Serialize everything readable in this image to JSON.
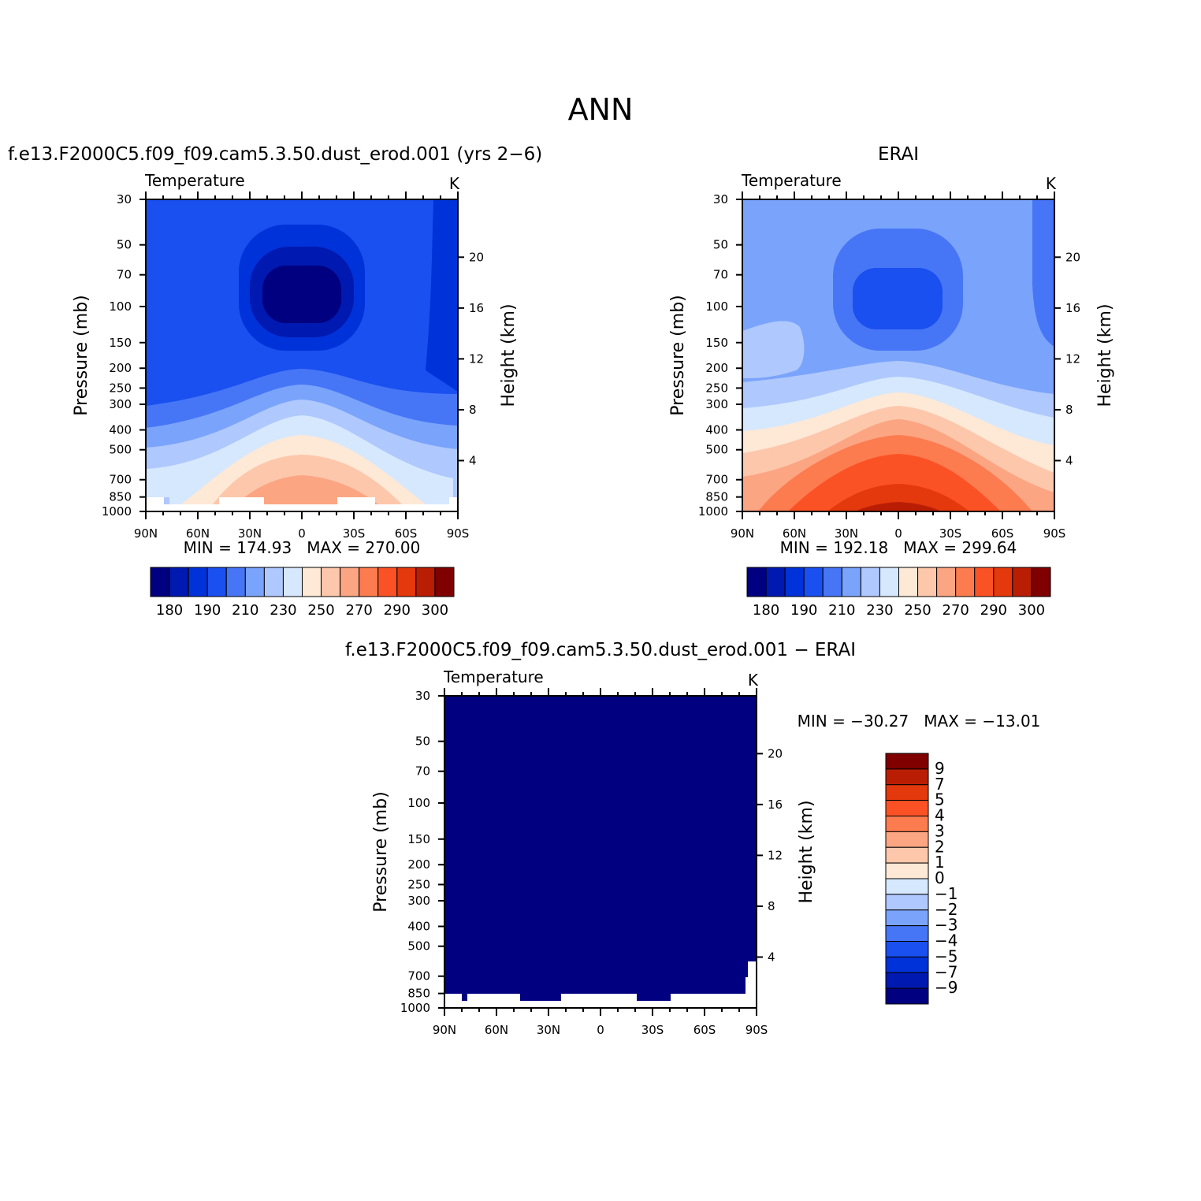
{
  "figure": {
    "title": "ANN",
    "colors": [
      "#000080",
      "#0019b0",
      "#0032d9",
      "#1a4ff0",
      "#4676f6",
      "#7aa3fb",
      "#afc8fd",
      "#d6e8fe",
      "#fee8d6",
      "#fdc7ab",
      "#fca583",
      "#fc7c4f",
      "#fb5225",
      "#e4380d",
      "#b91e05",
      "#800000"
    ]
  },
  "panels": [
    {
      "id": "model",
      "title": "f.e13.F2000C5.f09_f09.cam5.3.50.dust_erod.001 (yrs 2−6)",
      "left_label": "Temperature",
      "right_label": "K",
      "ylabel": "Pressure (mb)",
      "y2label": "Height (km)",
      "minmax": "MIN = 174.93   MAX = 270.00",
      "colorbar_labels": [
        "180",
        "190",
        "210",
        "230",
        "250",
        "270",
        "290",
        "300"
      ]
    },
    {
      "id": "obs",
      "title": "ERAI",
      "left_label": "Temperature",
      "right_label": "K",
      "ylabel": "Pressure (mb)",
      "y2label": "Height (km)",
      "minmax": "MIN = 192.18   MAX = 299.64",
      "colorbar_labels": [
        "180",
        "190",
        "210",
        "230",
        "250",
        "270",
        "290",
        "300"
      ]
    },
    {
      "id": "diff",
      "title": "f.e13.F2000C5.f09_f09.cam5.3.50.dust_erod.001 − ERAI",
      "left_label": "Temperature",
      "right_label": "K",
      "ylabel": "Pressure (mb)",
      "y2label": "Height (km)",
      "minmax": "MIN = −30.27   MAX = −13.01",
      "colorbar_labels": [
        "9",
        "7",
        "5",
        "4",
        "3",
        "2",
        "1",
        "0",
        "−1",
        "−2",
        "−3",
        "−4",
        "−5",
        "−7",
        "−9"
      ]
    }
  ],
  "chart_data": [
    {
      "type": "heatmap",
      "title": "f.e13.F2000C5.f09_f09.cam5.3.50.dust_erod.001 (yrs 2−6)",
      "xlabel": "",
      "ylabel": "Pressure (mb)",
      "y2label": "Height (km)",
      "x_ticks": [
        "90N",
        "60N",
        "30N",
        "0",
        "30S",
        "60S",
        "90S"
      ],
      "x_range": [
        90,
        -90
      ],
      "y_ticks": [
        30,
        50,
        70,
        100,
        150,
        200,
        250,
        300,
        400,
        500,
        700,
        850,
        1000
      ],
      "y_range": [
        30,
        1000
      ],
      "y_scale": "log",
      "y2_ticks": [
        4,
        8,
        12,
        16,
        20
      ],
      "contour_levels": [
        180,
        185,
        190,
        200,
        210,
        220,
        230,
        240,
        250,
        260,
        270,
        280,
        290,
        295,
        300
      ],
      "colorbar_labels": [
        "180",
        "190",
        "210",
        "230",
        "250",
        "270",
        "290",
        "300"
      ],
      "min": 174.93,
      "max": 270.0,
      "fill_level_index": 5
    },
    {
      "type": "heatmap",
      "title": "ERAI",
      "xlabel": "",
      "ylabel": "Pressure (mb)",
      "y2label": "Height (km)",
      "x_ticks": [
        "90N",
        "60N",
        "30N",
        "0",
        "30S",
        "60S",
        "90S"
      ],
      "x_range": [
        90,
        -90
      ],
      "y_ticks": [
        30,
        50,
        70,
        100,
        150,
        200,
        250,
        300,
        400,
        500,
        700,
        850,
        1000
      ],
      "y_range": [
        30,
        1000
      ],
      "y_scale": "log",
      "y2_ticks": [
        4,
        8,
        12,
        16,
        20
      ],
      "contour_levels": [
        180,
        185,
        190,
        200,
        210,
        220,
        230,
        240,
        250,
        260,
        270,
        280,
        290,
        295,
        300
      ],
      "colorbar_labels": [
        "180",
        "190",
        "210",
        "230",
        "250",
        "270",
        "290",
        "300"
      ],
      "min": 192.18,
      "max": 299.64,
      "fill_level_index": 5
    },
    {
      "type": "heatmap",
      "title": "f.e13.F2000C5.f09_f09.cam5.3.50.dust_erod.001 − ERAI",
      "xlabel": "",
      "ylabel": "Pressure (mb)",
      "y2label": "Height (km)",
      "x_ticks": [
        "90N",
        "60N",
        "30N",
        "0",
        "30S",
        "60S",
        "90S"
      ],
      "x_range": [
        90,
        -90
      ],
      "y_ticks": [
        30,
        50,
        70,
        100,
        150,
        200,
        250,
        300,
        400,
        500,
        700,
        850,
        1000
      ],
      "y_range": [
        30,
        1000
      ],
      "y_scale": "log",
      "y2_ticks": [
        4,
        8,
        12,
        16,
        20
      ],
      "contour_levels": [
        -9,
        -7,
        -5,
        -4,
        -3,
        -2,
        -1,
        0,
        1,
        2,
        3,
        4,
        5,
        7,
        9
      ],
      "colorbar_labels": [
        "9",
        "7",
        "5",
        "4",
        "3",
        "2",
        "1",
        "0",
        "−1",
        "−2",
        "−3",
        "−4",
        "−5",
        "−7",
        "−9"
      ],
      "min": -30.27,
      "max": -13.01,
      "fill_level_index": 0
    }
  ]
}
